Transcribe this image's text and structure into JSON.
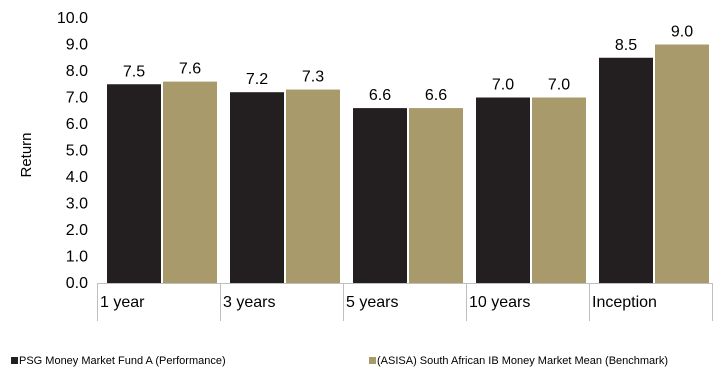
{
  "chart_data": {
    "type": "bar",
    "categories": [
      "1 year",
      "3 years",
      "5 years",
      "10 years",
      "Inception"
    ],
    "series": [
      {
        "name": "PSG Money Market Fund A (Performance)",
        "values": [
          7.5,
          7.2,
          6.6,
          7.0,
          8.5
        ],
        "color": "#231f20"
      },
      {
        "name": "(ASISA) South African IB Money Market Mean (Benchmark)",
        "values": [
          7.6,
          7.3,
          6.6,
          7.0,
          9.0
        ],
        "color": "#a99a6b"
      }
    ],
    "data_labels": [
      [
        "7.5",
        "7.2",
        "6.6",
        "7.0",
        "8.5"
      ],
      [
        "7.6",
        "7.3",
        "6.6",
        "7.0",
        "9.0"
      ]
    ],
    "ylabel": "Return",
    "ylim": [
      0,
      10
    ],
    "y_ticks": [
      "0.0",
      "1.0",
      "2.0",
      "3.0",
      "4.0",
      "5.0",
      "6.0",
      "7.0",
      "8.0",
      "9.0",
      "10.0"
    ],
    "grid": false,
    "legend_position": "bottom"
  }
}
